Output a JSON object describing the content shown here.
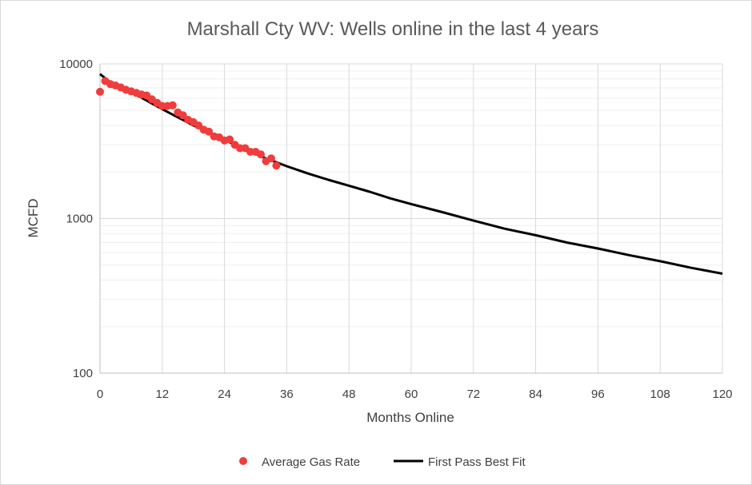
{
  "chart_data": {
    "type": "scatter",
    "title": "Marshall Cty WV:  Wells online in the last 4 years",
    "xlabel": "Months Online",
    "ylabel": "MCFD",
    "xlim": [
      0,
      120
    ],
    "ylim": [
      100,
      10000
    ],
    "y_scale": "log",
    "x_ticks": [
      0,
      12,
      24,
      36,
      48,
      60,
      72,
      84,
      96,
      108,
      120
    ],
    "y_ticks": [
      100,
      1000,
      10000
    ],
    "grid": true,
    "legend_position": "bottom",
    "series": [
      {
        "name": "Average Gas Rate",
        "kind": "scatter",
        "color": "#f03c3c",
        "x": [
          0,
          1,
          2,
          3,
          4,
          5,
          6,
          7,
          8,
          9,
          10,
          11,
          12,
          13,
          14,
          15,
          16,
          17,
          18,
          19,
          20,
          21,
          22,
          23,
          24,
          25,
          26,
          27,
          28,
          29,
          30,
          31,
          32,
          33,
          34
        ],
        "y": [
          6600,
          7750,
          7400,
          7250,
          7050,
          6800,
          6650,
          6500,
          6350,
          6250,
          5900,
          5600,
          5350,
          5350,
          5400,
          4850,
          4650,
          4350,
          4200,
          4000,
          3750,
          3650,
          3400,
          3350,
          3200,
          3250,
          3000,
          2850,
          2850,
          2700,
          2700,
          2600,
          2350,
          2450,
          2200
        ]
      },
      {
        "name": "First Pass Best Fit",
        "kind": "line",
        "color": "#000000",
        "x": [
          0,
          2,
          4,
          6,
          8,
          10,
          12,
          14,
          16,
          18,
          20,
          24,
          28,
          32,
          36,
          40,
          44,
          48,
          52,
          56,
          60,
          66,
          72,
          78,
          84,
          90,
          96,
          102,
          108,
          114,
          120
        ],
        "y": [
          8600,
          7600,
          7050,
          6550,
          6050,
          5550,
          5100,
          4700,
          4350,
          4000,
          3750,
          3230,
          2800,
          2450,
          2180,
          1960,
          1780,
          1630,
          1490,
          1350,
          1240,
          1100,
          970,
          860,
          780,
          700,
          640,
          580,
          530,
          480,
          440
        ]
      }
    ]
  }
}
